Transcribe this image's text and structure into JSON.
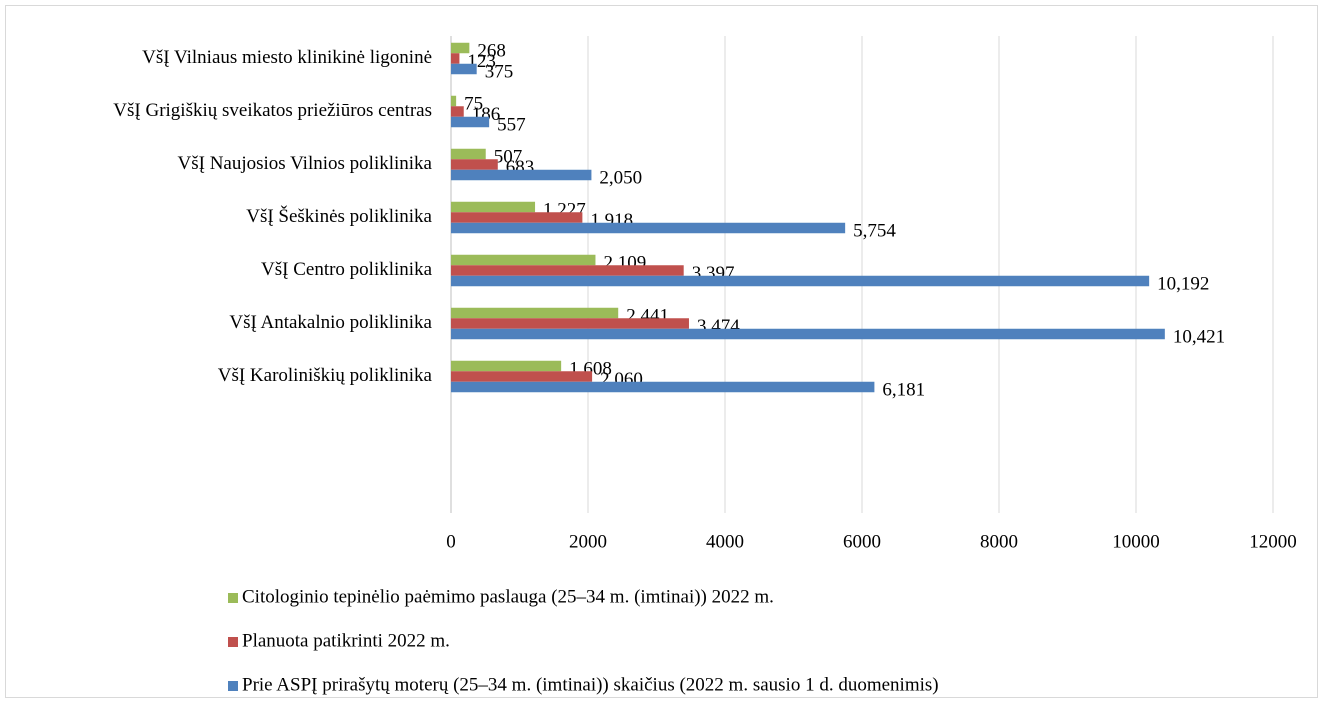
{
  "chart_data": {
    "type": "hbar",
    "categories": [
      "VšĮ Vilniaus miesto klinikinė ligoninė",
      "VšĮ Grigiškių sveikatos priežiūros centras",
      "VšĮ Naujosios Vilnios poliklinika",
      "VšĮ Šeškinės poliklinika",
      "VšĮ Centro poliklinika",
      "VšĮ Antakalnio poliklinika",
      "VšĮ Karoliniškių poliklinika",
      null,
      null
    ],
    "series": [
      {
        "name": "Citologinio tepinėlio paėmimo paslauga (25–34 m. (imtinai)) 2022 m.",
        "color": "#9bbb59",
        "values": [
          268,
          75,
          507,
          1227,
          2109,
          2441,
          1608,
          null,
          null
        ],
        "value_labels": [
          "268",
          "75",
          "507",
          "1,227",
          "2,109",
          "2,441",
          "1,608",
          null,
          null
        ]
      },
      {
        "name": "Planuota patikrinti 2022 m.",
        "color": "#c0504d",
        "values": [
          123,
          186,
          683,
          1918,
          3397,
          3474,
          2060,
          null,
          null
        ],
        "value_labels": [
          "123",
          "186",
          "683",
          "1,918",
          "3,397",
          "3,474",
          "2,060",
          null,
          null
        ]
      },
      {
        "name": "Prie ASPĮ prirašytų moterų (25–34 m. (imtinai)) skaičius (2022 m. sausio 1 d. duomenimis)",
        "color": "#4f81bd",
        "values": [
          375,
          557,
          2050,
          5754,
          10192,
          10421,
          6181,
          null,
          null
        ],
        "value_labels": [
          "375",
          "557",
          "2,050",
          "5,754",
          "10,192",
          "10,421",
          "6,181",
          null,
          null
        ]
      }
    ],
    "xlim": [
      0,
      12000
    ],
    "xticks": [
      0,
      2000,
      4000,
      6000,
      8000,
      10000,
      12000
    ],
    "grid": true,
    "legend": "bottom"
  }
}
